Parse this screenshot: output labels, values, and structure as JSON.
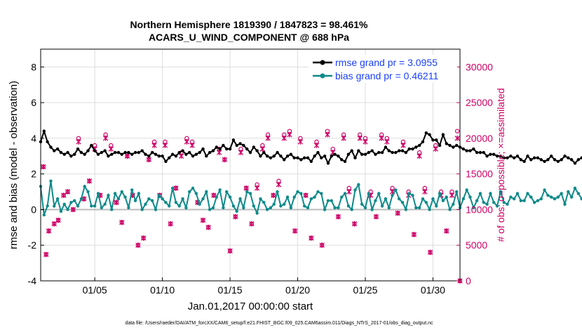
{
  "chart_data": {
    "type": "line",
    "title_line1": "Northern Hemisphere 1819390 / 1847823 = 98.461%",
    "title_line2": "ACARS_U_WIND_COMPONENT @ 688 hPa",
    "xlabel": "Jan.01,2017 00:00:00 start",
    "ylabel_left": "rmse and bias (model - observation)",
    "ylabel_right": "# of obs: o=possible; ×=assimilated",
    "footnote": "data file: /Users/raeder/DAI/ATM_forcXX/CAM6_setup/f.e21.FHIST_BGC.f09_025.CAM6assim.011/Diags_NTrS_2017-01/obs_diag_output.nc",
    "xlim": [
      1.0,
      32.0
    ],
    "ylim_left": [
      -4,
      9
    ],
    "ylim_right": [
      0,
      32500
    ],
    "x_tick_values": [
      5,
      10,
      15,
      20,
      25,
      30
    ],
    "x_tick_labels": [
      "01/05",
      "01/10",
      "01/15",
      "01/20",
      "01/25",
      "01/30"
    ],
    "y_left_ticks": [
      -4,
      -2,
      0,
      2,
      4,
      6,
      8
    ],
    "y_right_ticks": [
      0,
      5000,
      10000,
      15000,
      20000,
      25000,
      30000
    ],
    "legend": [
      {
        "label": "rmse grand pr = 3.0955",
        "color": "#000000"
      },
      {
        "label": "bias grand pr = 0.46211",
        "color": "#0f8a8a"
      }
    ],
    "colors": {
      "rmse": "#000000",
      "bias": "#0f8a8a",
      "obs": "#cc0066",
      "zero_line": "#bbbbbb",
      "grid": "#dddddd"
    },
    "x_start": 1.0,
    "x_step": 0.25,
    "rmse": [
      3.8,
      4.4,
      3.8,
      3.5,
      3.3,
      3.4,
      3.2,
      3.1,
      3.2,
      3.0,
      3.1,
      3.4,
      3.2,
      3.1,
      3.3,
      3.6,
      3.3,
      3.1,
      3.2,
      3.3,
      3.0,
      3.1,
      3.2,
      3.2,
      3.1,
      3.2,
      3.2,
      3.1,
      3.2,
      3.2,
      3.3,
      3.1,
      3.0,
      3.2,
      3.1,
      3.0,
      3.0,
      2.7,
      2.9,
      3.1,
      3.0,
      3.2,
      3.3,
      3.1,
      3.2,
      3.0,
      3.1,
      3.2,
      3.4,
      3.0,
      3.2,
      3.3,
      3.5,
      3.4,
      3.6,
      3.4,
      3.4,
      3.9,
      3.6,
      3.7,
      3.6,
      3.4,
      3.2,
      3.5,
      3.3,
      3.0,
      3.2,
      3.0,
      2.9,
      3.0,
      3.2,
      3.0,
      2.8,
      3.0,
      3.1,
      2.9,
      2.9,
      2.8,
      2.9,
      2.9,
      2.7,
      3.0,
      3.2,
      2.9,
      3.0,
      2.6,
      3.0,
      3.1,
      3.0,
      2.8,
      2.7,
      3.1,
      3.3,
      2.9,
      3.3,
      3.1,
      3.1,
      3.2,
      3.3,
      3.1,
      3.2,
      3.2,
      3.5,
      3.3,
      3.2,
      3.2,
      3.3,
      3.3,
      3.2,
      3.4,
      3.4,
      3.5,
      3.6,
      3.8,
      4.3,
      4.2,
      3.9,
      3.9,
      3.6,
      4.2,
      3.7,
      3.6,
      3.5,
      3.6,
      3.5,
      3.4,
      3.3,
      3.3,
      3.4,
      3.2,
      3.2,
      3.2,
      3.0,
      3.1,
      3.1,
      3.0,
      3.0,
      2.9,
      2.9,
      3.0,
      2.9,
      3.0,
      2.8,
      2.7,
      3.0,
      2.8,
      2.9,
      2.9,
      2.8,
      2.7,
      2.8,
      3.0,
      2.8,
      2.7,
      2.8,
      3.0,
      2.9,
      2.8,
      2.6,
      2.8,
      2.9,
      3.0,
      2.9,
      2.8,
      3.0,
      3.0,
      2.8,
      2.7,
      2.7,
      2.9,
      3.0,
      2.9,
      2.7,
      3.0,
      3.2,
      3.1,
      2.9,
      2.8,
      2.9,
      3.0,
      2.8,
      2.8,
      2.7,
      2.9,
      3.0,
      3.0,
      2.9,
      2.7
    ],
    "bias": [
      1.3,
      -0.3,
      0.2,
      1.6,
      0.2,
      0.6,
      -0.1,
      0.3,
      0.0,
      0.4,
      0.5,
      0.2,
      0.6,
      1.3,
      1.0,
      0.2,
      0.2,
      0.9,
      0.1,
      0.3,
      0.8,
      0.0,
      0.9,
      0.6,
      1.0,
      0.7,
      0.1,
      1.1,
      0.5,
      0.9,
      0.0,
      0.3,
      0.6,
      0.5,
      0.0,
      0.8,
      0.6,
      0.4,
      0.2,
      1.2,
      0.4,
      0.2,
      0.6,
      0.1,
      1.0,
      1.2,
      0.9,
      0.3,
      0.6,
      1.0,
      0.0,
      0.1,
      0.7,
      1.1,
      0.1,
      1.0,
      0.7,
      0.2,
      -0.1,
      0.6,
      0.1,
      1.0,
      0.9,
      0.2,
      -0.2,
      0.6,
      0.4,
      0.0,
      0.1,
      0.3,
      1.0,
      0.2,
      0.3,
      0.7,
      0.1,
      0.7,
      1.0,
      0.9,
      0.2,
      0.1,
      0.6,
      0.7,
      1.0,
      0.9,
      0.0,
      0.5,
      0.5,
      0.1,
      0.1,
      0.7,
      0.9,
      0.2,
      0.0,
      1.1,
      1.4,
      0.3,
      0.1,
      0.9,
      0.0,
      0.5,
      0.9,
      0.2,
      0.6,
      0.1,
      0.8,
      1.1,
      0.6,
      0.4,
      0.0,
      0.9,
      0.8,
      0.1,
      0.1,
      0.6,
      0.4,
      0.0,
      0.6,
      0.2,
      0.9,
      0.5,
      0.7,
      0.0,
      0.3,
      1.0,
      0.1,
      0.6,
      1.1,
      0.7,
      0.1,
      0.5,
      0.9,
      0.4,
      0.3,
      0.9,
      0.4,
      0.2,
      1.0,
      0.4,
      0.3,
      0.7,
      0.6,
      0.9,
      0.5,
      0.5,
      0.9,
      0.7,
      0.4,
      0.5,
      0.6,
      1.1,
      0.8,
      0.7,
      0.6,
      0.7,
      0.9,
      0.3,
      1.0,
      0.7,
      1.2,
      0.9,
      0.6,
      1.0,
      1.0,
      0.9,
      1.3,
      0.9,
      0.6,
      1.1,
      0.6,
      1.2,
      0.7,
      0.4,
      1.0,
      0.9,
      1.0,
      0.6,
      0.8,
      1.1,
      1.2,
      1.0,
      0.8,
      0.6,
      0.9,
      0.7,
      1.0,
      1.2,
      0.7,
      0.6,
      0.6,
      0.5
    ],
    "obs_x": [
      1.2,
      1.4,
      1.6,
      2.0,
      2.3,
      2.7,
      3.0,
      3.4,
      3.8,
      4.2,
      4.6,
      5.0,
      5.4,
      5.8,
      6.2,
      6.6,
      7.0,
      7.4,
      7.8,
      8.2,
      8.6,
      9.0,
      9.4,
      9.8,
      10.2,
      10.6,
      11.0,
      11.4,
      11.8,
      12.2,
      12.6,
      13.0,
      13.4,
      13.8,
      14.2,
      14.6,
      15.0,
      15.4,
      15.8,
      16.2,
      16.6,
      17.0,
      17.4,
      17.8,
      18.2,
      18.6,
      19.0,
      19.4,
      19.8,
      20.2,
      20.6,
      21.0,
      21.4,
      21.8,
      22.2,
      22.6,
      23.0,
      23.4,
      23.8,
      24.2,
      24.6,
      25.0,
      25.4,
      25.8,
      26.2,
      26.6,
      27.0,
      27.4,
      27.8,
      28.2,
      28.6,
      29.0,
      29.4,
      29.8,
      30.2,
      30.6,
      31.0,
      31.4,
      31.8,
      32.0
    ],
    "obs_possible": [
      16000,
      3700,
      7000,
      8000,
      8500,
      12000,
      12500,
      10000,
      20000,
      11500,
      14000,
      19000,
      12000,
      20500,
      19000,
      11000,
      8200,
      17500,
      12000,
      5000,
      6000,
      17000,
      19500,
      12000,
      19500,
      8000,
      13000,
      18000,
      20000,
      19500,
      11000,
      8500,
      7500,
      12000,
      18500,
      17000,
      4200,
      9000,
      18500,
      13000,
      8000,
      13500,
      19000,
      20500,
      12000,
      14000,
      20500,
      21000,
      7000,
      20000,
      12000,
      6000,
      19500,
      5000,
      21000,
      18500,
      9000,
      20500,
      13000,
      8000,
      20500,
      20000,
      12500,
      9000,
      20500,
      20000,
      13000,
      9500,
      19500,
      12500,
      6500,
      18000,
      13000,
      4000,
      19000,
      12500,
      7000,
      12500,
      21000,
      0
    ],
    "obs_assimilated": [
      16000,
      3700,
      7000,
      8000,
      8500,
      12000,
      12500,
      10000,
      19500,
      11500,
      14000,
      18500,
      12000,
      20000,
      18500,
      11000,
      8200,
      17500,
      12000,
      5000,
      6000,
      17000,
      19000,
      12000,
      19000,
      8000,
      13000,
      17500,
      19500,
      19000,
      11000,
      8500,
      7500,
      12000,
      18000,
      17000,
      4200,
      9000,
      18000,
      13000,
      8000,
      13000,
      18500,
      20000,
      12000,
      13500,
      20000,
      20500,
      7000,
      19500,
      12000,
      6000,
      19000,
      5000,
      20500,
      18000,
      9000,
      20000,
      12500,
      8000,
      20000,
      19500,
      12000,
      9000,
      20000,
      19500,
      12500,
      9500,
      19000,
      12000,
      6500,
      17500,
      12500,
      4000,
      18500,
      12000,
      7000,
      12000,
      20000,
      0
    ]
  }
}
